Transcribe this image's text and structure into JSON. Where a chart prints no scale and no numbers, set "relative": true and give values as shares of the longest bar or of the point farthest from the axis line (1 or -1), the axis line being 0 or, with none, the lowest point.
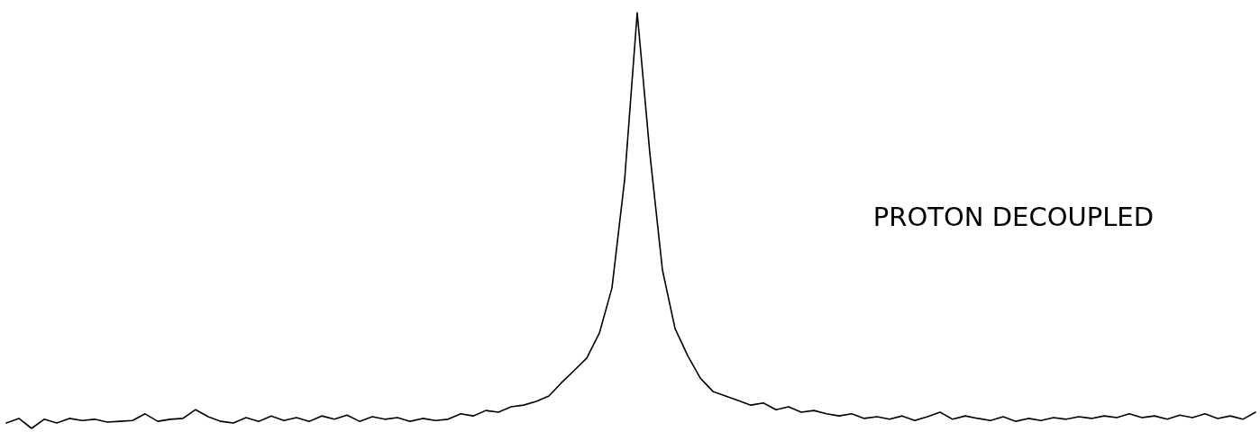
{
  "chart_data": {
    "type": "line",
    "relative": true,
    "categories": [
      null,
      null,
      null,
      null,
      null,
      null,
      null,
      null,
      null,
      null,
      null,
      null,
      null,
      null,
      null,
      null,
      null,
      null,
      null,
      null,
      null,
      null,
      null,
      null,
      null,
      null,
      null,
      null,
      null,
      null,
      null,
      null,
      null,
      null,
      null,
      null,
      null,
      null,
      null,
      null,
      null,
      null,
      null,
      null,
      null,
      null,
      null,
      null,
      null,
      null,
      null,
      null,
      null,
      null,
      null,
      null,
      null,
      null,
      null,
      null,
      null,
      null,
      null,
      null,
      null,
      null,
      null,
      null,
      null,
      null,
      null,
      null,
      null,
      null,
      null,
      null,
      null,
      null,
      null,
      null,
      null,
      null,
      null,
      null,
      null,
      null,
      null,
      null,
      null,
      null,
      null,
      null,
      null,
      null,
      null,
      null,
      null,
      null,
      null,
      null
    ],
    "series": [
      {
        "color": "#000000",
        "values": [
          0.013,
          0.024,
          0,
          0.022,
          0.013,
          0.024,
          0.019,
          0.022,
          0.015,
          0.017,
          0.019,
          0.035,
          0.017,
          0.022,
          0.024,
          0.045,
          0.028,
          0.017,
          0.013,
          0.026,
          0.017,
          0.03,
          0.019,
          0.026,
          0.017,
          0.03,
          0.022,
          0.032,
          0.017,
          0.028,
          0.022,
          0.026,
          0.017,
          0.024,
          0.019,
          0.022,
          0.035,
          0.03,
          0.043,
          0.039,
          0.052,
          0.056,
          0.065,
          0.078,
          0.11,
          0.139,
          0.169,
          0.229,
          0.338,
          0.597,
          1,
          0.662,
          0.381,
          0.24,
          0.175,
          0.121,
          0.089,
          0.078,
          0.067,
          0.056,
          0.061,
          0.045,
          0.052,
          0.039,
          0.043,
          0.035,
          0.03,
          0.035,
          0.024,
          0.028,
          0.022,
          0.03,
          0.019,
          0.028,
          0.039,
          0.022,
          0.03,
          0.024,
          0.019,
          0.028,
          0.017,
          0.024,
          0.019,
          0.026,
          0.022,
          0.028,
          0.024,
          0.03,
          0.026,
          0.035,
          0.026,
          0.03,
          0.022,
          0.032,
          0.026,
          0.035,
          0.024,
          0.03,
          0.022,
          0.039
        ]
      }
    ],
    "annotations": [
      "PROTON DECOUPLED"
    ],
    "marker": "none",
    "line_style": "solid"
  }
}
